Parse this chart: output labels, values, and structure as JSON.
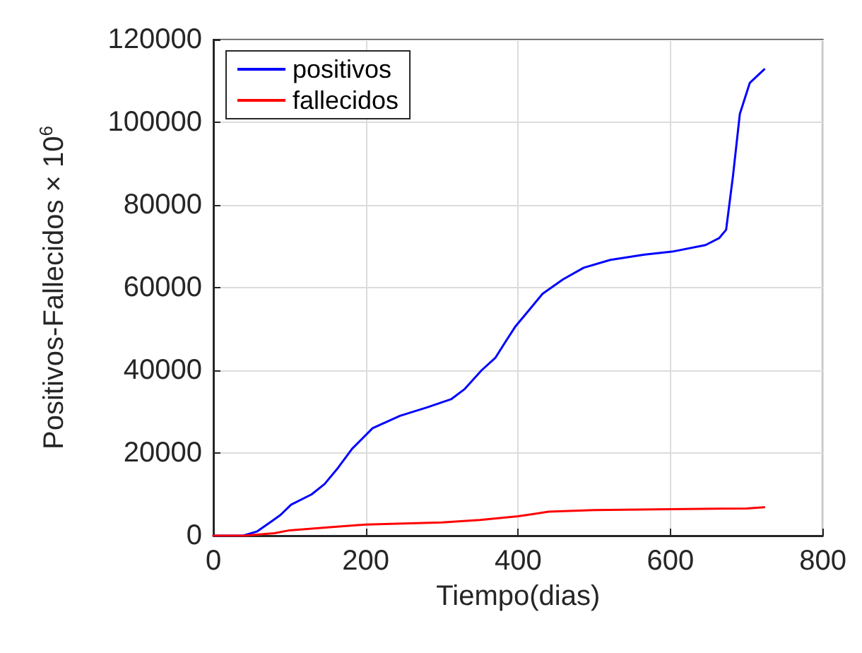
{
  "chart_data": {
    "type": "line",
    "xlabel": "Tiempo(dias)",
    "ylabel": "Positivos-Fallecidos × 10$^{6}$",
    "xlim": [
      0,
      800
    ],
    "xticks": [
      0,
      200,
      400,
      600,
      800
    ],
    "ylim": [
      0,
      120000
    ],
    "yticks": [
      0,
      20000,
      40000,
      60000,
      80000,
      100000,
      120000
    ],
    "grid": true,
    "legend": "top left",
    "marker": "none",
    "line_style": "solid",
    "series": [
      {
        "name": "positivos",
        "color": "#0000ff",
        "x": [
          0,
          39,
          57,
          75,
          88,
          102,
          129,
          146,
          164,
          182,
          209,
          245,
          280,
          312,
          330,
          352,
          370,
          382,
          396,
          414,
          432,
          459,
          486,
          521,
          566,
          602,
          646,
          664,
          673,
          682,
          691,
          704,
          723
        ],
        "values": [
          0,
          0,
          1000,
          3300,
          5000,
          7500,
          10000,
          12500,
          16500,
          21000,
          26000,
          29000,
          31000,
          33000,
          35500,
          40000,
          43000,
          46500,
          50500,
          54500,
          58500,
          62000,
          64800,
          66700,
          68000,
          68700,
          70300,
          72000,
          74000,
          87000,
          102000,
          109500,
          112800
        ]
      },
      {
        "name": "fallecidos",
        "color": "#ff0000",
        "x": [
          0,
          40,
          80,
          100,
          150,
          200,
          300,
          350,
          400,
          440,
          500,
          600,
          700,
          723
        ],
        "values": [
          0,
          0,
          600,
          1300,
          2000,
          2700,
          3200,
          3800,
          4700,
          5800,
          6200,
          6400,
          6600,
          6900
        ]
      }
    ]
  }
}
